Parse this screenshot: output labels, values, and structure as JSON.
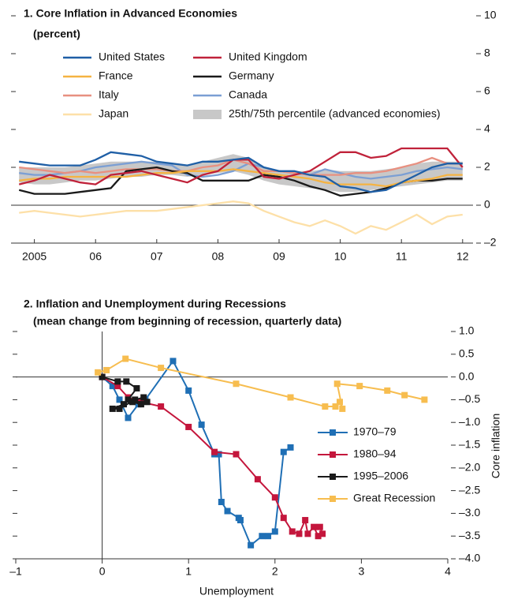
{
  "chart_data": [
    {
      "type": "line",
      "title": "1.  Core Inflation in Advanced Economies",
      "subtitle": "(percent)",
      "x": [
        2004.75,
        2005,
        2005.25,
        2005.5,
        2005.75,
        2006,
        2006.25,
        2006.5,
        2006.75,
        2007,
        2007.25,
        2007.5,
        2007.75,
        2008,
        2008.25,
        2008.5,
        2008.75,
        2009,
        2009.25,
        2009.5,
        2009.75,
        2010,
        2010.25,
        2010.5,
        2010.75,
        2011,
        2011.25,
        2011.5,
        2011.75,
        2012
      ],
      "series": [
        {
          "name": "United States",
          "color": "#1f5fa6",
          "values": [
            2.3,
            2.2,
            2.1,
            2.1,
            2.1,
            2.4,
            2.8,
            2.7,
            2.6,
            2.3,
            2.2,
            2.1,
            2.3,
            2.3,
            2.4,
            2.5,
            2.0,
            1.8,
            1.8,
            1.6,
            1.5,
            1.0,
            0.9,
            0.7,
            0.8,
            1.2,
            1.6,
            2.0,
            2.2,
            2.2
          ]
        },
        {
          "name": "United Kingdom",
          "color": "#c0223a",
          "values": [
            1.1,
            1.3,
            1.6,
            1.4,
            1.2,
            1.1,
            1.6,
            1.7,
            1.8,
            1.6,
            1.4,
            1.2,
            1.6,
            1.8,
            2.4,
            2.4,
            1.5,
            1.4,
            1.6,
            1.8,
            2.3,
            2.8,
            2.8,
            2.5,
            2.6,
            3.0,
            3.0,
            3.0,
            3.0,
            2.0
          ]
        },
        {
          "name": "France",
          "color": "#f5b342",
          "values": [
            1.3,
            1.4,
            1.4,
            1.5,
            1.5,
            1.5,
            1.5,
            1.5,
            1.6,
            1.7,
            1.7,
            1.8,
            1.8,
            1.8,
            1.9,
            1.8,
            1.7,
            1.6,
            1.5,
            1.4,
            1.2,
            1.1,
            1.1,
            1.1,
            1.0,
            1.2,
            1.3,
            1.4,
            1.6,
            1.6
          ]
        },
        {
          "name": "Germany",
          "color": "#1a1a1a",
          "values": [
            0.8,
            0.6,
            0.6,
            0.6,
            0.7,
            0.8,
            0.9,
            1.8,
            1.9,
            2.0,
            1.8,
            1.7,
            1.3,
            1.3,
            1.3,
            1.3,
            1.6,
            1.5,
            1.3,
            1.0,
            0.8,
            0.5,
            0.6,
            0.7,
            0.9,
            1.2,
            1.3,
            1.3,
            1.4,
            1.4
          ]
        },
        {
          "name": "Italy",
          "color": "#e89080",
          "values": [
            2.0,
            1.9,
            1.8,
            1.7,
            1.8,
            1.7,
            1.8,
            1.9,
            1.9,
            1.9,
            1.8,
            1.8,
            2.0,
            2.1,
            2.4,
            2.2,
            1.8,
            1.8,
            1.7,
            1.6,
            1.6,
            1.6,
            1.7,
            1.7,
            1.8,
            2.0,
            2.2,
            2.5,
            2.2,
            2.2
          ]
        },
        {
          "name": "Canada",
          "color": "#7b9fd4",
          "values": [
            1.7,
            1.6,
            1.6,
            1.7,
            1.8,
            2.0,
            2.1,
            2.2,
            2.3,
            2.2,
            2.1,
            1.6,
            1.5,
            1.6,
            1.8,
            2.2,
            2.0,
            1.8,
            1.7,
            1.6,
            1.9,
            1.7,
            1.5,
            1.4,
            1.5,
            1.6,
            1.8,
            1.9,
            2.0,
            1.9
          ]
        },
        {
          "name": "Japan",
          "color": "#fde0a8",
          "values": [
            -0.4,
            -0.3,
            -0.4,
            -0.5,
            -0.6,
            -0.5,
            -0.4,
            -0.3,
            -0.3,
            -0.3,
            -0.2,
            -0.1,
            0.0,
            0.1,
            0.2,
            0.1,
            -0.3,
            -0.6,
            -0.9,
            -1.1,
            -0.8,
            -1.1,
            -1.5,
            -1.1,
            -1.3,
            -0.9,
            -0.5,
            -1.0,
            -0.6,
            -0.5
          ]
        }
      ],
      "band": {
        "name": "25th/75th percentile (advanced economies)",
        "color": "#c8c8c8",
        "low": [
          1.2,
          1.1,
          1.1,
          1.2,
          1.3,
          1.3,
          1.4,
          1.5,
          1.5,
          1.6,
          1.6,
          1.5,
          1.6,
          1.7,
          1.8,
          1.6,
          1.3,
          1.1,
          1.0,
          0.9,
          0.8,
          0.7,
          0.7,
          0.8,
          0.9,
          1.0,
          1.1,
          1.2,
          1.3,
          1.3
        ],
        "high": [
          2.0,
          2.0,
          2.0,
          2.0,
          2.1,
          2.2,
          2.3,
          2.3,
          2.3,
          2.3,
          2.2,
          2.1,
          2.3,
          2.5,
          2.7,
          2.5,
          2.0,
          1.8,
          1.8,
          1.8,
          1.9,
          1.8,
          1.8,
          1.8,
          1.9,
          2.0,
          2.2,
          2.3,
          2.3,
          2.3
        ]
      },
      "xlim": [
        2004.67,
        2012.17
      ],
      "ylim": [
        -2,
        10
      ],
      "xticks": [
        2005,
        {
          "value": 2006,
          "label": "06"
        },
        {
          "value": 2007,
          "label": "07"
        },
        {
          "value": 2008,
          "label": "08"
        },
        {
          "value": 2009,
          "label": "09"
        },
        {
          "value": 2010,
          "label": "10"
        },
        {
          "value": 2011,
          "label": "11"
        },
        {
          "value": 2012,
          "label": "12"
        }
      ],
      "yticks": [
        {
          "value": -2,
          "label": "–2"
        },
        0,
        2,
        4,
        6,
        8,
        10
      ]
    },
    {
      "type": "connected-scatter",
      "title": "2.  Inflation and Unemployment during Recessions",
      "subtitle": "(mean change from beginning of recession, quarterly data)",
      "x_label": "Unemployment",
      "y_label": "Core inflation",
      "series": [
        {
          "name": "1970–79",
          "color": "#1f6fb5",
          "x": [
            0,
            0.12,
            0.2,
            0.3,
            0.42,
            0.5,
            0.82,
            1.0,
            1.15,
            1.3,
            1.35,
            1.38,
            1.45,
            1.58,
            1.6,
            1.72,
            1.85,
            1.92,
            2.0,
            2.1,
            2.18
          ],
          "values": [
            0,
            -0.2,
            -0.5,
            -0.9,
            -0.6,
            -0.5,
            0.35,
            -0.3,
            -1.05,
            -1.7,
            -1.7,
            -2.75,
            -2.95,
            -3.1,
            -3.15,
            -3.7,
            -3.5,
            -3.5,
            -3.4,
            -1.65,
            -1.55
          ]
        },
        {
          "name": "1980–94",
          "color": "#c4163c",
          "x": [
            0,
            0.18,
            0.3,
            0.45,
            0.68,
            1.0,
            1.3,
            1.55,
            1.8,
            2.0,
            2.1,
            2.2,
            2.28,
            2.35,
            2.38,
            2.45,
            2.5,
            2.55,
            2.52
          ],
          "values": [
            0,
            -0.2,
            -0.45,
            -0.55,
            -0.65,
            -1.1,
            -1.65,
            -1.7,
            -2.25,
            -2.65,
            -3.1,
            -3.4,
            -3.45,
            -3.15,
            -3.45,
            -3.3,
            -3.5,
            -3.45,
            -3.3
          ]
        },
        {
          "name": "1995–2006",
          "color": "#1a1a1a",
          "x": [
            0,
            0.18,
            0.28,
            0.4,
            0.3,
            0.25,
            0.12,
            0.2,
            0.38,
            0.48,
            0.52,
            0.35,
            0.45
          ],
          "values": [
            0,
            -0.1,
            -0.1,
            -0.25,
            -0.5,
            -0.6,
            -0.7,
            -0.7,
            -0.5,
            -0.45,
            -0.55,
            -0.55,
            -0.6
          ]
        },
        {
          "name": "Great Recession",
          "color": "#f7bd4f",
          "x": [
            -0.05,
            0.05,
            0.27,
            0.68,
            1.55,
            2.18,
            2.58,
            2.7,
            2.75,
            2.78,
            2.72,
            2.98,
            3.3,
            3.5,
            3.73
          ],
          "values": [
            0.1,
            0.15,
            0.4,
            0.2,
            -0.15,
            -0.45,
            -0.65,
            -0.65,
            -0.55,
            -0.7,
            -0.15,
            -0.2,
            -0.3,
            -0.4,
            -0.5
          ]
        }
      ],
      "xlim": [
        -1,
        4
      ],
      "ylim": [
        -4,
        1
      ],
      "xticks": [
        {
          "value": -1,
          "label": "–1"
        },
        0,
        1,
        2,
        3,
        4
      ],
      "yticks": [
        {
          "value": 1,
          "label": "1.0"
        },
        0.5,
        {
          "value": 0,
          "label": "0.0"
        },
        {
          "value": -0.5,
          "label": "–0.5"
        },
        {
          "value": -1,
          "label": "–1.0"
        },
        {
          "value": -1.5,
          "label": "–1.5"
        },
        {
          "value": -2,
          "label": "–2.0"
        },
        {
          "value": -2.5,
          "label": "–2.5"
        },
        {
          "value": -3,
          "label": "–3.0"
        },
        {
          "value": -3.5,
          "label": "–3.5"
        },
        {
          "value": -4,
          "label": "–4.0"
        }
      ]
    }
  ]
}
